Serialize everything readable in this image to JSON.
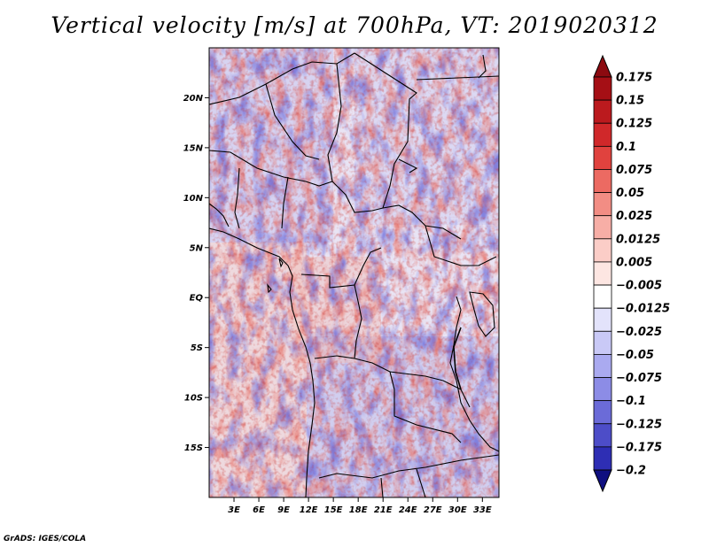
{
  "title": "Vertical velocity [m/s] at 700hPa, VT: 2019020312",
  "credit": "GrADS: IGES/COLA",
  "map": {
    "lon_range": [
      0,
      35
    ],
    "lat_range": [
      -20,
      25
    ],
    "lat_ticks": [
      {
        "value": 20,
        "label": "20N"
      },
      {
        "value": 15,
        "label": "15N"
      },
      {
        "value": 10,
        "label": "10N"
      },
      {
        "value": 5,
        "label": "5N"
      },
      {
        "value": 0,
        "label": "EQ"
      },
      {
        "value": -5,
        "label": "5S"
      },
      {
        "value": -10,
        "label": "10S"
      },
      {
        "value": -15,
        "label": "15S"
      }
    ],
    "lon_ticks": [
      {
        "value": 3,
        "label": "3E"
      },
      {
        "value": 6,
        "label": "6E"
      },
      {
        "value": 9,
        "label": "9E"
      },
      {
        "value": 12,
        "label": "12E"
      },
      {
        "value": 15,
        "label": "15E"
      },
      {
        "value": 18,
        "label": "18E"
      },
      {
        "value": 21,
        "label": "21E"
      },
      {
        "value": 24,
        "label": "24E"
      },
      {
        "value": 27,
        "label": "27E"
      },
      {
        "value": 30,
        "label": "30E"
      },
      {
        "value": 33,
        "label": "33E"
      }
    ]
  },
  "colorbar": {
    "levels": [
      {
        "label": "0.175",
        "color": "#a50f15"
      },
      {
        "label": "0.15",
        "color": "#bb1a1e"
      },
      {
        "label": "0.125",
        "color": "#d0282a"
      },
      {
        "label": "0.1",
        "color": "#e0423e"
      },
      {
        "label": "0.075",
        "color": "#ec6a62"
      },
      {
        "label": "0.05",
        "color": "#f28d84"
      },
      {
        "label": "0.025",
        "color": "#f7aea6"
      },
      {
        "label": "0.0125",
        "color": "#fbcdc7"
      },
      {
        "label": "0.005",
        "color": "#fde6e2"
      },
      {
        "label": "−0.005",
        "color": "#ffffff"
      },
      {
        "label": "−0.0125",
        "color": "#e3e3fb"
      },
      {
        "label": "−0.025",
        "color": "#c9c9f6"
      },
      {
        "label": "−0.05",
        "color": "#aaaaf0"
      },
      {
        "label": "−0.075",
        "color": "#8c8ce6"
      },
      {
        "label": "−0.1",
        "color": "#6b6bd8"
      },
      {
        "label": "−0.125",
        "color": "#4d4dc8"
      },
      {
        "label": "−0.175",
        "color": "#2e2eb4"
      },
      {
        "label": "−0.2",
        "color": "#1a1a9c"
      }
    ],
    "top_arrow_color": "#8c0a10",
    "bottom_arrow_color": "#0f0f80"
  }
}
